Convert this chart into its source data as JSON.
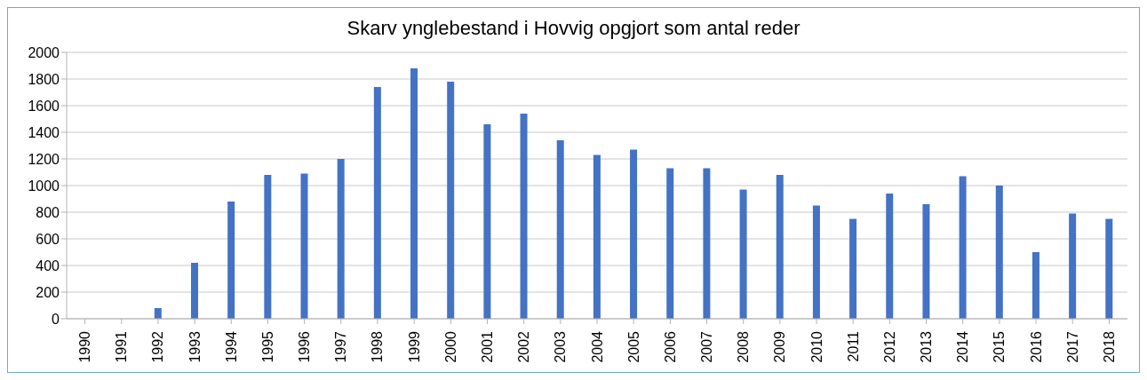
{
  "chart_data": {
    "type": "bar",
    "title": "Skarv ynglebestand i Hovvig opgjort som antal reder",
    "categories": [
      "1990",
      "1991",
      "1992",
      "1993",
      "1994",
      "1995",
      "1996",
      "1997",
      "1998",
      "1999",
      "2000",
      "2001",
      "2002",
      "2003",
      "2004",
      "2005",
      "2006",
      "2007",
      "2008",
      "2009",
      "2010",
      "2011",
      "2012",
      "2013",
      "2014",
      "2015",
      "2016",
      "2017",
      "2018"
    ],
    "values": [
      0,
      0,
      80,
      420,
      880,
      1080,
      1090,
      1200,
      1740,
      1880,
      1780,
      1460,
      1540,
      1340,
      1230,
      1270,
      1130,
      1130,
      970,
      1080,
      850,
      750,
      940,
      860,
      1070,
      1000,
      500,
      790,
      750
    ],
    "color": "#4472c4",
    "ylim": [
      0,
      2000
    ],
    "yticks": [
      0,
      200,
      400,
      600,
      800,
      1000,
      1200,
      1400,
      1600,
      1800,
      2000
    ],
    "grid": "y"
  }
}
